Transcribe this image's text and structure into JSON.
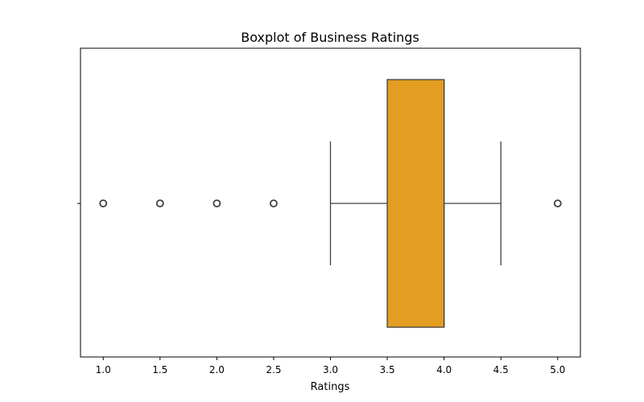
{
  "chart_data": {
    "type": "boxplot",
    "orientation": "horizontal",
    "title": "Boxplot of Business Ratings",
    "xlabel": "Ratings",
    "ylabel": "",
    "xlim": [
      0.8,
      5.2
    ],
    "xticks": [
      "1.0",
      "1.5",
      "2.0",
      "2.5",
      "3.0",
      "3.5",
      "4.0",
      "4.5",
      "5.0"
    ],
    "box": {
      "whisker_low": 3.0,
      "q1": 3.5,
      "median": 4.0,
      "q3": 4.0,
      "whisker_high": 4.5
    },
    "outliers": [
      1.0,
      1.5,
      2.0,
      2.5,
      5.0
    ],
    "box_color": "#e39d21",
    "edge_color": "#404040",
    "grid": false
  }
}
